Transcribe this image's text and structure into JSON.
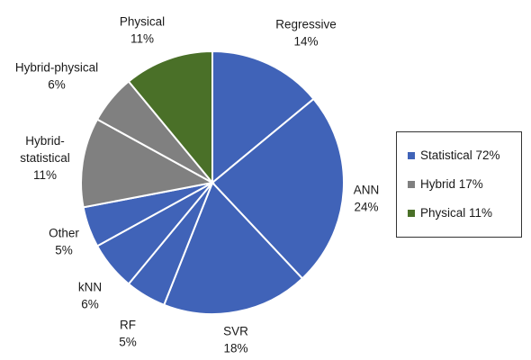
{
  "chart_data": {
    "type": "pie",
    "slices": [
      {
        "label_lines": [
          "Regressive",
          "14%"
        ],
        "value": 14,
        "color": "#4063b8"
      },
      {
        "label_lines": [
          "ANN",
          "24%"
        ],
        "value": 24,
        "color": "#4063b8"
      },
      {
        "label_lines": [
          "SVR",
          "18%"
        ],
        "value": 18,
        "color": "#4063b8"
      },
      {
        "label_lines": [
          "RF",
          "5%"
        ],
        "value": 5,
        "color": "#4063b8"
      },
      {
        "label_lines": [
          "kNN",
          "6%"
        ],
        "value": 6,
        "color": "#4063b8"
      },
      {
        "label_lines": [
          "Other",
          "5%"
        ],
        "value": 5,
        "color": "#4063b8"
      },
      {
        "label_lines": [
          "Hybrid-",
          "statistical",
          "11%"
        ],
        "value": 11,
        "color": "#808080"
      },
      {
        "label_lines": [
          "Hybrid-physical",
          "6%"
        ],
        "value": 6,
        "color": "#808080"
      },
      {
        "label_lines": [
          "Physical",
          "11%"
        ],
        "value": 11,
        "color": "#4a7028"
      }
    ],
    "legend": {
      "placement": "right",
      "entries": [
        {
          "label": "Statistical 72%",
          "color": "#4063b8"
        },
        {
          "label": "Hybrid 17%",
          "color": "#808080"
        },
        {
          "label": "Physical 11%",
          "color": "#4a7028"
        }
      ]
    }
  }
}
